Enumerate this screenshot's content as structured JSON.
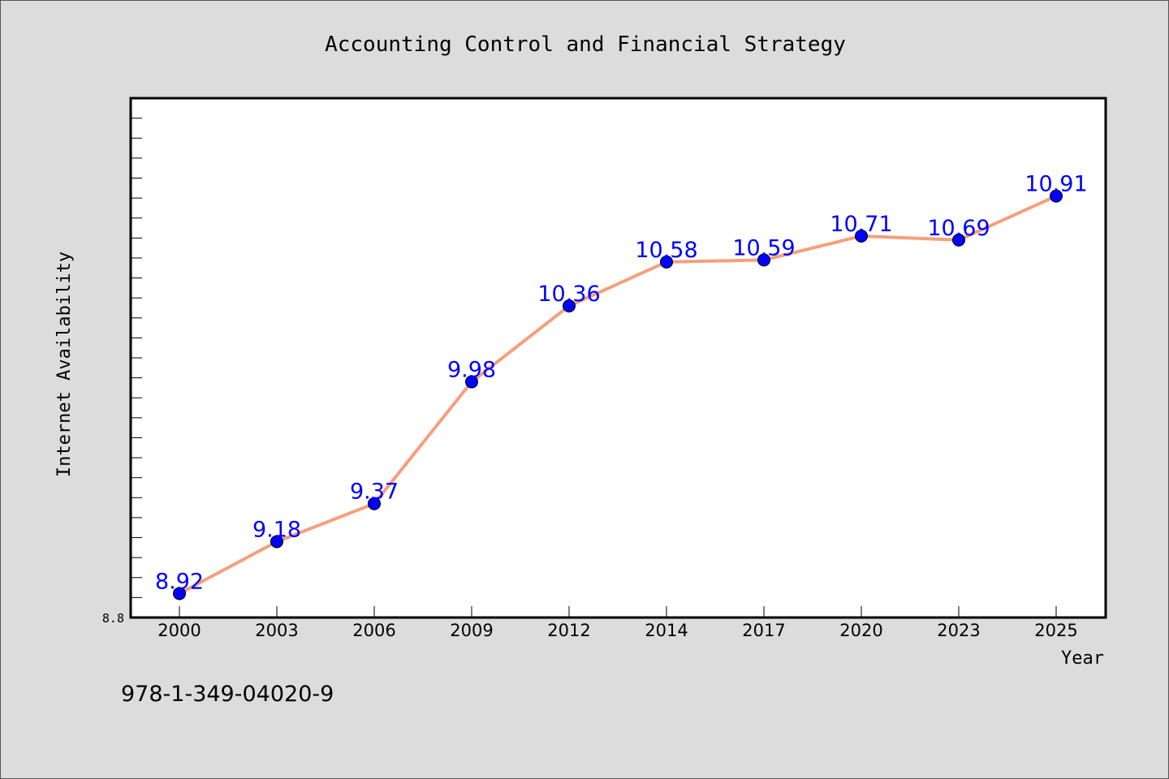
{
  "chart_data": {
    "type": "line",
    "title": "Accounting Control and Financial Strategy",
    "xlabel": "Year",
    "ylabel": "Internet Availability",
    "categories": [
      "2000",
      "2003",
      "2006",
      "2009",
      "2012",
      "2014",
      "2017",
      "2020",
      "2023",
      "2025"
    ],
    "series": [
      {
        "values": [
          8.92,
          9.18,
          9.37,
          9.98,
          10.36,
          10.58,
          10.59,
          10.71,
          10.69,
          10.91
        ]
      }
    ],
    "data_labels": [
      "8.92",
      "9.18",
      "9.37",
      "9.98",
      "10.36",
      "10.58",
      "10.59",
      "10.71",
      "10.69",
      "10.91"
    ],
    "ylim": [
      8.8,
      11.4
    ],
    "y_tick_labels": [
      "8.8"
    ],
    "grid": false,
    "line_color": "#f4a07c",
    "marker_color": "#0000ff",
    "label_color": "#0000ff"
  },
  "footer": {
    "isbn": "978-1-349-04020-9"
  }
}
